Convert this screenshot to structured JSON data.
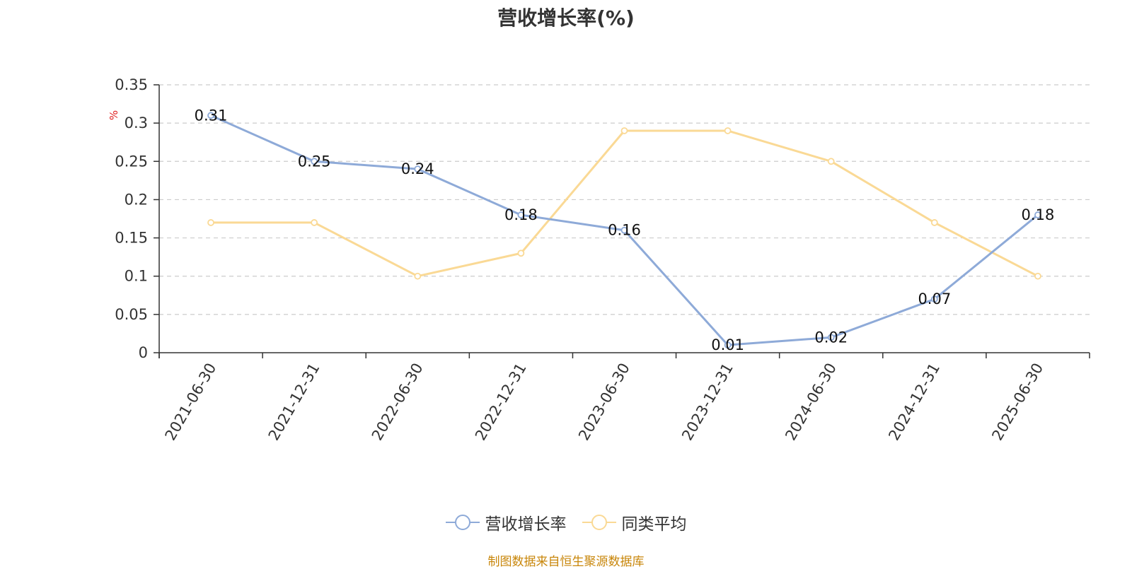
{
  "chart_data": {
    "type": "line",
    "title": "营收增长率(%)",
    "unit": "%",
    "categories": [
      "2021-06-30",
      "2021-12-31",
      "2022-06-30",
      "2022-12-31",
      "2023-06-30",
      "2023-12-31",
      "2024-06-30",
      "2024-12-31",
      "2025-06-30"
    ],
    "series": [
      {
        "name": "营收增长率",
        "color": "#8eaad8",
        "values": [
          0.31,
          0.25,
          0.24,
          0.18,
          0.16,
          0.01,
          0.02,
          0.07,
          0.18
        ],
        "data_labels": true
      },
      {
        "name": "同类平均",
        "color": "#fad995",
        "values": [
          0.17,
          0.17,
          0.1,
          0.13,
          0.29,
          0.29,
          0.25,
          0.17,
          0.1
        ],
        "data_labels": false
      }
    ],
    "ylim": [
      0,
      0.35
    ],
    "yticks": [
      0,
      0.05,
      0.1,
      0.15,
      0.2,
      0.25,
      0.3,
      0.35
    ],
    "grid": true,
    "legend_position": "bottom-center"
  },
  "source_note": "制图数据来自恒生聚源数据库"
}
